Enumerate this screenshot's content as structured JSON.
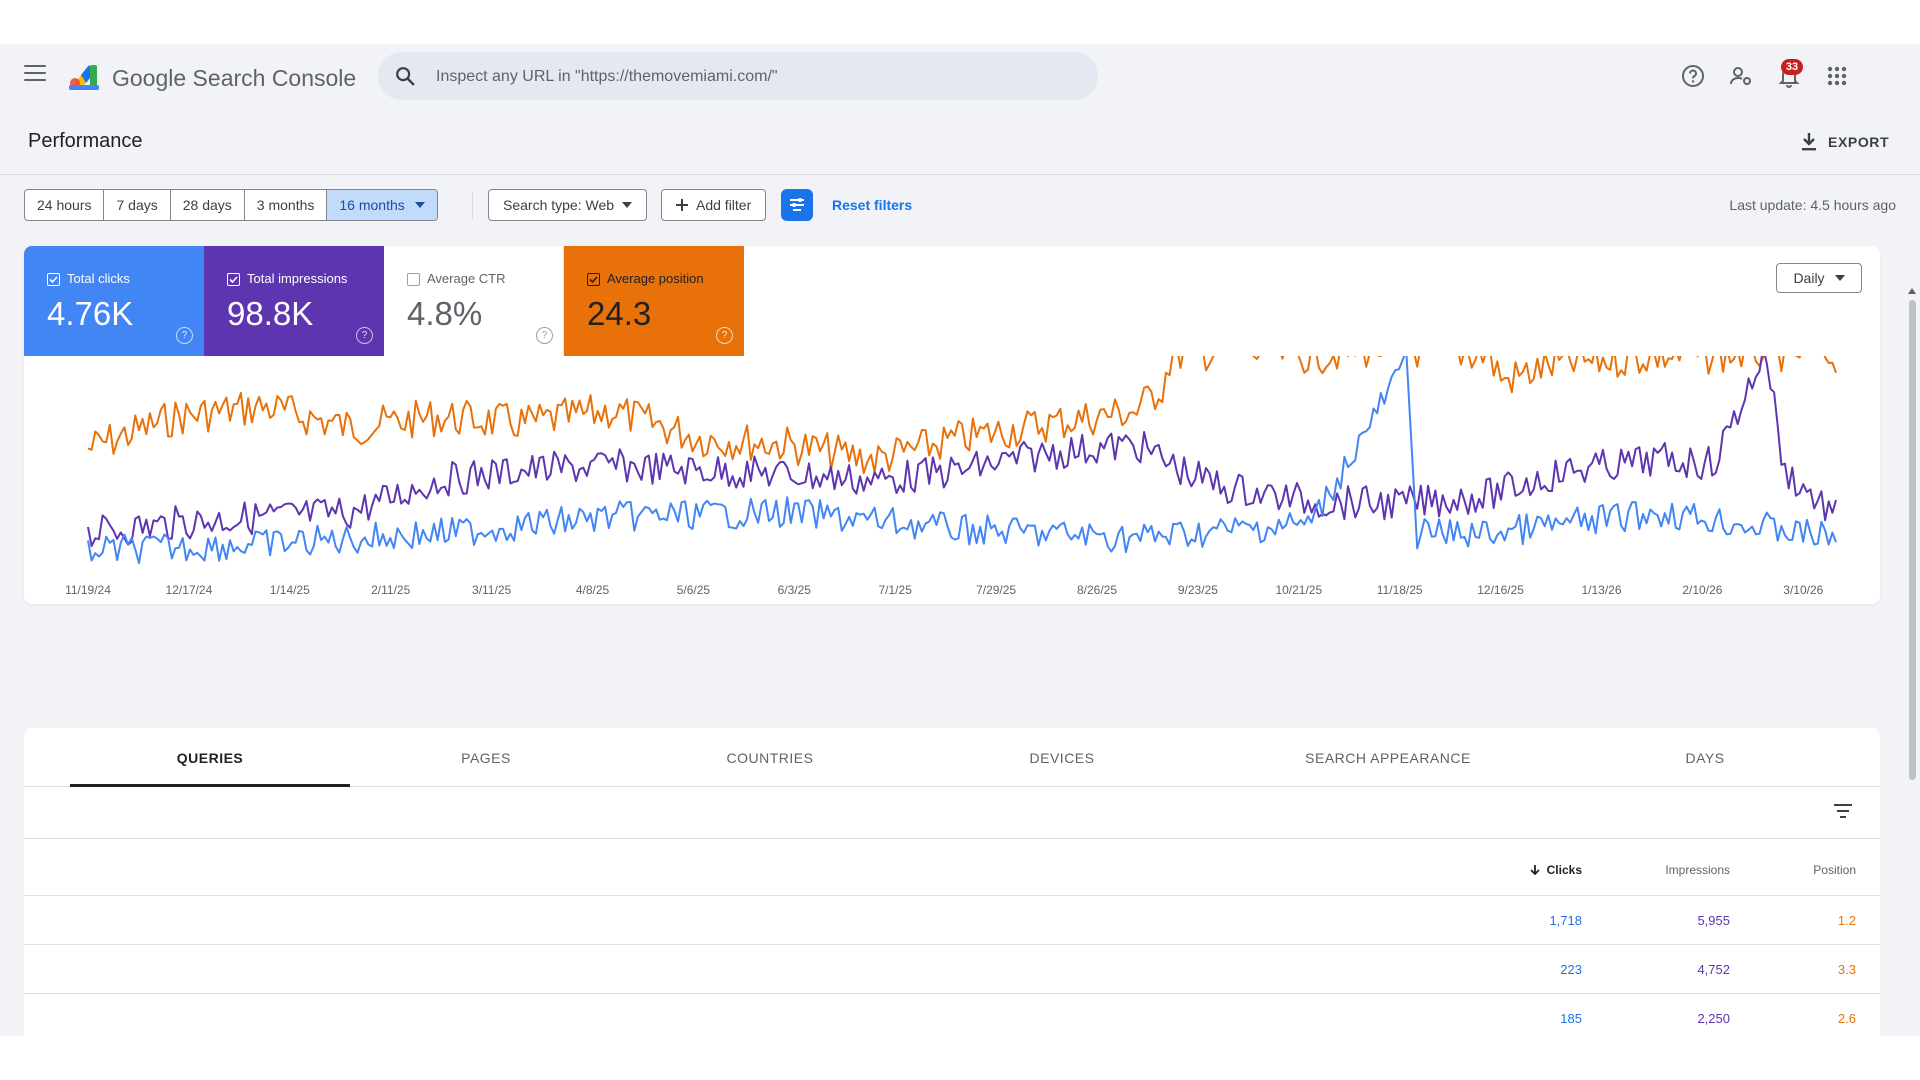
{
  "app": {
    "name": "Google Search Console",
    "search_placeholder": "Inspect any URL in \"https://themovemiami.com/\"",
    "notification_count": "33"
  },
  "icons": {
    "menu": "hamburger-menu-icon",
    "search": "search-icon",
    "help": "help-circle-icon",
    "account": "manage-users-icon",
    "notifications": "bell-icon",
    "apps": "apps-grid-icon",
    "export": "download-icon"
  },
  "page": {
    "title": "Performance",
    "export_label": "EXPORT"
  },
  "filters": {
    "date_ranges": [
      "24 hours",
      "7 days",
      "28 days",
      "3 months",
      "16 months"
    ],
    "selected_range": "16 months",
    "search_type": "Search type: Web",
    "add_filter": "Add filter",
    "reset": "Reset filters",
    "last_update": "Last update: 4.5 hours ago"
  },
  "metrics": [
    {
      "label": "Total clicks",
      "value": "4.76K",
      "checked": true,
      "color": "#4285f4"
    },
    {
      "label": "Total impressions",
      "value": "98.8K",
      "checked": true,
      "color": "#5e35b1"
    },
    {
      "label": "Average CTR",
      "value": "4.8%",
      "checked": false,
      "color": "#00897b"
    },
    {
      "label": "Average position",
      "value": "24.3",
      "checked": true,
      "color": "#e8710a"
    }
  ],
  "granularity": "Daily",
  "chart_data": {
    "type": "line",
    "x_tick_labels": [
      "11/19/24",
      "12/17/24",
      "1/14/25",
      "2/11/25",
      "3/11/25",
      "4/8/25",
      "5/6/25",
      "6/3/25",
      "7/1/25",
      "7/29/25",
      "8/26/25",
      "9/23/25",
      "10/21/25",
      "11/18/25",
      "12/16/25",
      "1/13/26",
      "2/10/26",
      "3/10/26"
    ],
    "x_range": [
      "11/19/24",
      "3/19/26"
    ],
    "grid": false,
    "legend": "metric cards above chart",
    "series": [
      {
        "name": "Average position",
        "color": "#e8710a",
        "y_axis": "inverted",
        "shape": "low values 2024-11 to 2025-09, step to higher level after 9/23/25, dip near 11/18/25",
        "points": [
          [
            0,
            0.4
          ],
          [
            0.05,
            0.25
          ],
          [
            0.1,
            0.2
          ],
          [
            0.15,
            0.3
          ],
          [
            0.2,
            0.25
          ],
          [
            0.25,
            0.28
          ],
          [
            0.3,
            0.22
          ],
          [
            0.35,
            0.35
          ],
          [
            0.4,
            0.38
          ],
          [
            0.45,
            0.45
          ],
          [
            0.5,
            0.35
          ],
          [
            0.55,
            0.28
          ],
          [
            0.6,
            0.22
          ],
          [
            0.615,
            0.1
          ],
          [
            0.62,
            -0.05
          ],
          [
            0.65,
            -0.06
          ],
          [
            0.7,
            -0.04
          ],
          [
            0.745,
            -0.08
          ],
          [
            0.77,
            -0.06
          ],
          [
            0.8,
            -0.05
          ],
          [
            0.81,
            0.08
          ],
          [
            0.84,
            0.0
          ],
          [
            0.87,
            -0.02
          ],
          [
            0.9,
            -0.04
          ],
          [
            0.93,
            -0.04
          ],
          [
            0.96,
            -0.06
          ],
          [
            1.0,
            -0.04
          ]
        ]
      },
      {
        "name": "Total impressions",
        "color": "#5e35b1",
        "shape": "rising trend with spikes near 7/29/25, 11/18/25 and 2/10/26",
        "points": [
          [
            0,
            0.8
          ],
          [
            0.05,
            0.75
          ],
          [
            0.1,
            0.72
          ],
          [
            0.15,
            0.7
          ],
          [
            0.2,
            0.55
          ],
          [
            0.25,
            0.5
          ],
          [
            0.3,
            0.48
          ],
          [
            0.35,
            0.5
          ],
          [
            0.4,
            0.52
          ],
          [
            0.45,
            0.55
          ],
          [
            0.5,
            0.5
          ],
          [
            0.55,
            0.42
          ],
          [
            0.6,
            0.38
          ],
          [
            0.63,
            0.52
          ],
          [
            0.65,
            0.58
          ],
          [
            0.7,
            0.65
          ],
          [
            0.75,
            0.66
          ],
          [
            0.8,
            0.62
          ],
          [
            0.84,
            0.52
          ],
          [
            0.85,
            0.5
          ],
          [
            0.9,
            0.45
          ],
          [
            0.93,
            0.47
          ],
          [
            0.96,
            -0.07
          ],
          [
            0.97,
            0.5
          ],
          [
            1.0,
            0.72
          ]
        ]
      },
      {
        "name": "Total clicks",
        "color": "#4285f4",
        "shape": "noisy low baseline with large spike near 11/18/25",
        "points": [
          [
            0,
            0.88
          ],
          [
            0.1,
            0.85
          ],
          [
            0.2,
            0.8
          ],
          [
            0.3,
            0.72
          ],
          [
            0.4,
            0.7
          ],
          [
            0.5,
            0.78
          ],
          [
            0.6,
            0.82
          ],
          [
            0.7,
            0.75
          ],
          [
            0.755,
            -0.02
          ],
          [
            0.76,
            0.8
          ],
          [
            0.8,
            0.8
          ],
          [
            0.9,
            0.7
          ],
          [
            1.0,
            0.82
          ]
        ]
      }
    ]
  },
  "tabs": [
    "QUERIES",
    "PAGES",
    "COUNTRIES",
    "DEVICES",
    "SEARCH APPEARANCE",
    "DAYS"
  ],
  "active_tab": "QUERIES",
  "table": {
    "columns": [
      "Clicks",
      "Impressions",
      "Position"
    ],
    "rows": [
      {
        "clicks": "1,718",
        "impressions": "5,955",
        "position": "1.2"
      },
      {
        "clicks": "223",
        "impressions": "4,752",
        "position": "3.3"
      },
      {
        "clicks": "185",
        "impressions": "2,250",
        "position": "2.6"
      }
    ]
  }
}
